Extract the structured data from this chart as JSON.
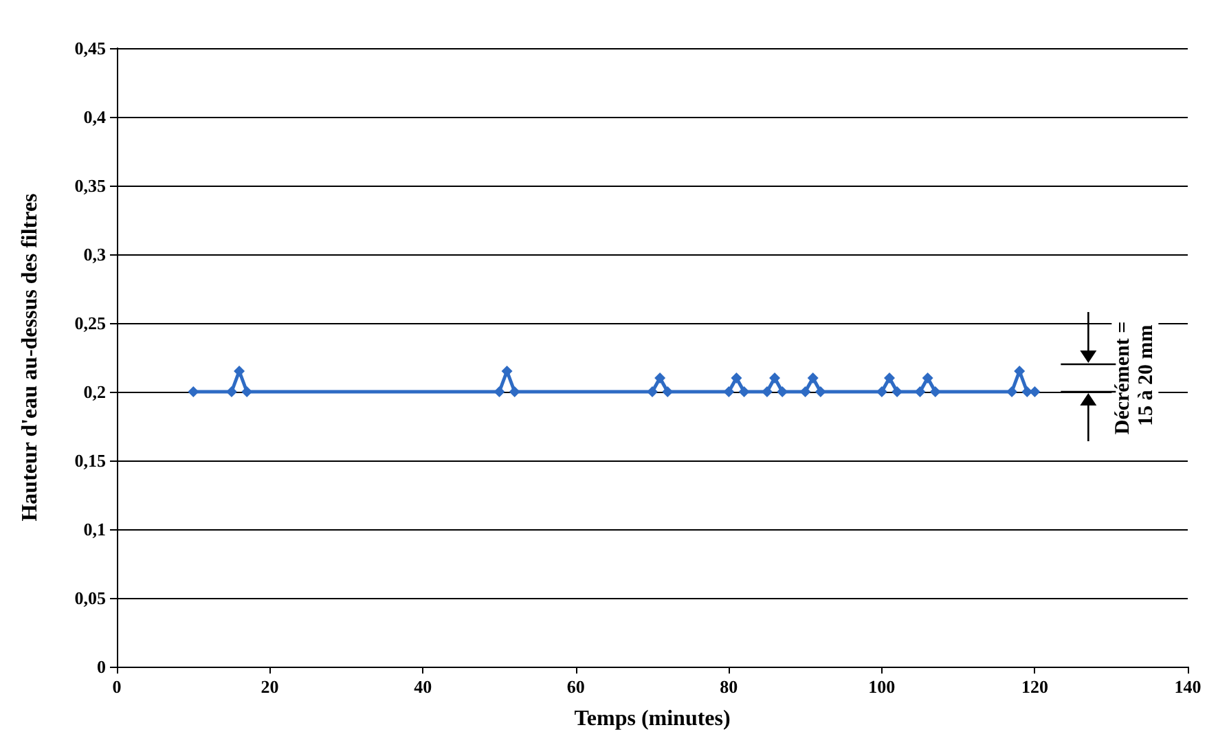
{
  "chart_data": {
    "type": "line",
    "xlabel": "Temps (minutes)",
    "ylabel": "Hauteur d'eau au-dessus des filtres",
    "x": [
      10,
      15,
      16,
      17,
      50,
      51,
      52,
      70,
      71,
      72,
      80,
      81,
      82,
      85,
      86,
      87,
      90,
      91,
      92,
      100,
      101,
      102,
      105,
      106,
      107,
      117,
      118,
      119,
      120
    ],
    "series": [
      {
        "color": "#2e6bc4",
        "values": [
          0.2,
          0.2,
          0.215,
          0.2,
          0.2,
          0.215,
          0.2,
          0.2,
          0.21,
          0.2,
          0.2,
          0.21,
          0.2,
          0.2,
          0.21,
          0.2,
          0.2,
          0.21,
          0.2,
          0.2,
          0.21,
          0.2,
          0.2,
          0.21,
          0.2,
          0.2,
          0.215,
          0.2,
          0.2
        ]
      }
    ],
    "xlim": [
      0,
      140
    ],
    "xticks": [
      0,
      20,
      40,
      60,
      80,
      100,
      120,
      140
    ],
    "ylim": [
      0,
      0.45
    ],
    "yticks": [
      {
        "value": 0,
        "label": "0"
      },
      {
        "value": 0.05,
        "label": "0,05"
      },
      {
        "value": 0.1,
        "label": "0,1"
      },
      {
        "value": 0.15,
        "label": "0,15"
      },
      {
        "value": 0.2,
        "label": "0,2"
      },
      {
        "value": 0.25,
        "label": "0,25"
      },
      {
        "value": 0.3,
        "label": "0,3"
      },
      {
        "value": 0.35,
        "label": "0,35"
      },
      {
        "value": 0.4,
        "label": "0,4"
      },
      {
        "value": 0.45,
        "label": "0,45"
      }
    ],
    "grid": "y",
    "marker": "diamond",
    "line_style": "solid",
    "annotations": [
      "Décrément = 15 à 20 mm"
    ]
  }
}
